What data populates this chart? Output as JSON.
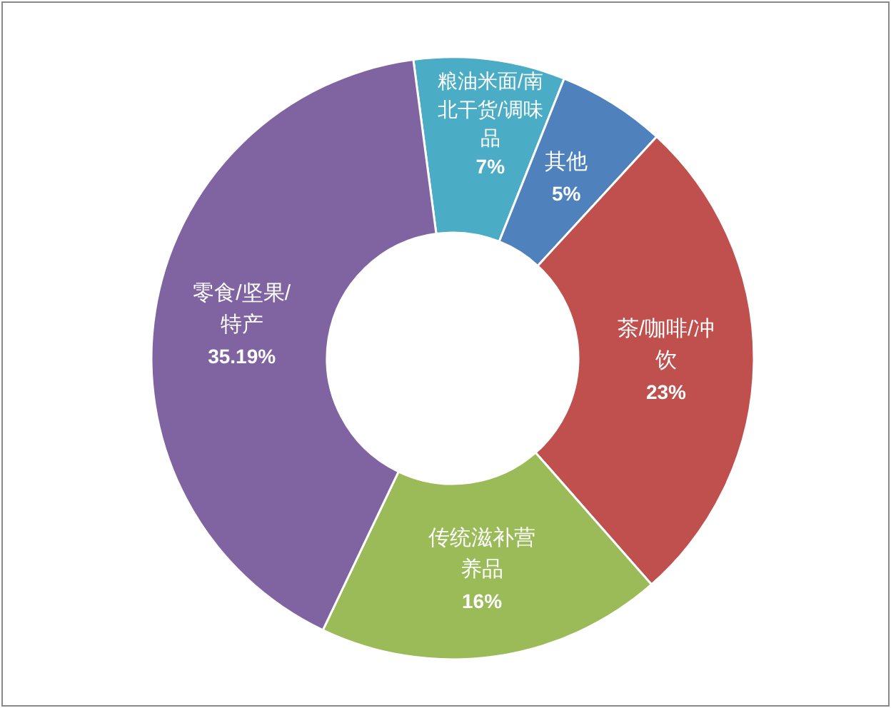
{
  "chart_data": {
    "type": "donut",
    "categories": [
      "粮油米面/南北干货/调味品",
      "其他",
      "茶/咖啡/冲饮",
      "传统滋补营养品",
      "零食/坚果/特产"
    ],
    "values": [
      7,
      5,
      23,
      16,
      35.19
    ],
    "value_labels": [
      "7%",
      "5%",
      "23%",
      "16%",
      "35.19%"
    ],
    "colors": [
      "#4bacc6",
      "#4f81bd",
      "#c0504d",
      "#9bbb59",
      "#8064a2"
    ]
  }
}
